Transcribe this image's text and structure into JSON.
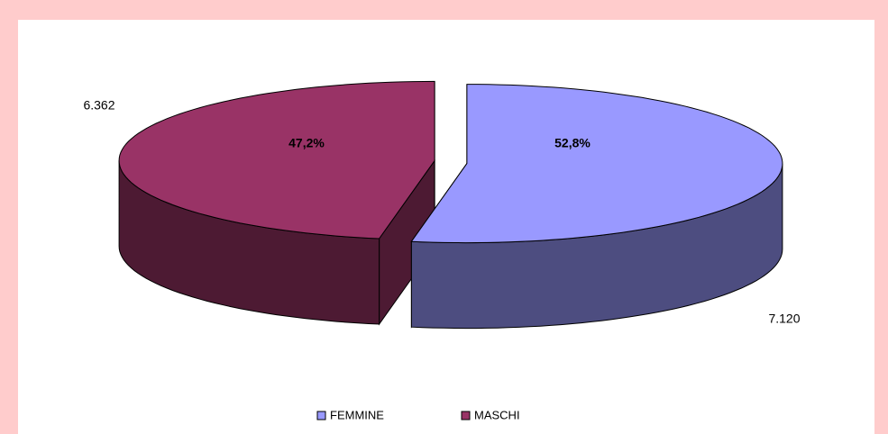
{
  "chart_data": {
    "type": "pie",
    "categories": [
      "FEMMINE",
      "MASCHI"
    ],
    "values": [
      7120,
      6362
    ],
    "value_labels": [
      "7.120",
      "6.362"
    ],
    "percent_labels": [
      "52,8%",
      "47,2%"
    ],
    "colors": [
      "#9999ff",
      "#993366"
    ],
    "side_colors": [
      "#4d4d80",
      "#4d1a33"
    ],
    "legend": "bottom"
  }
}
